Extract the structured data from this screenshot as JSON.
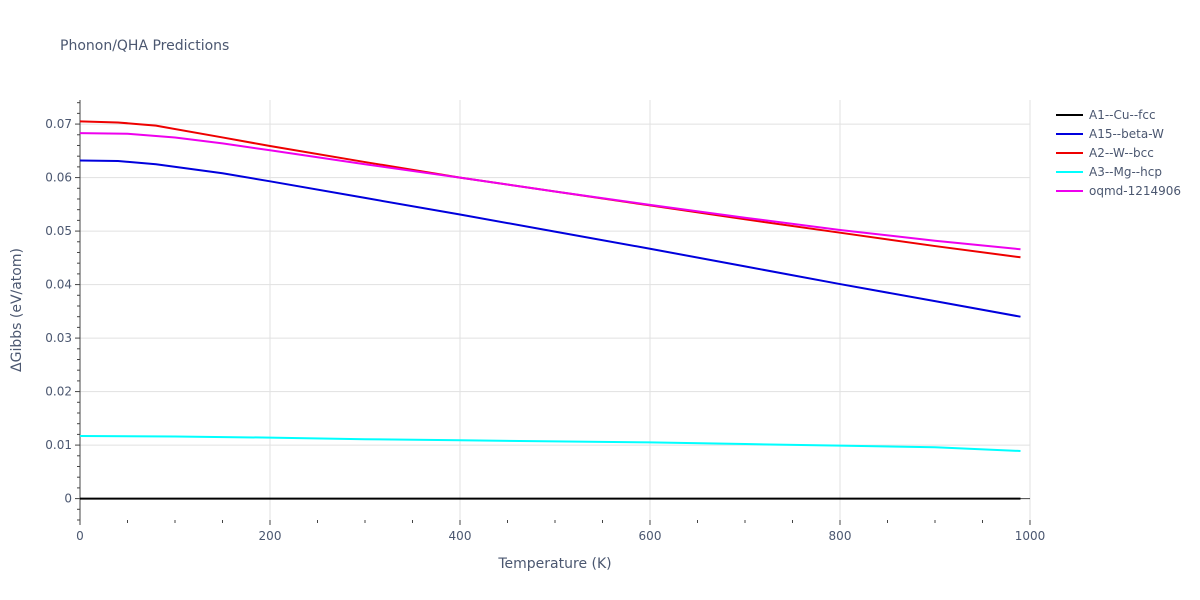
{
  "chart_data": {
    "type": "line",
    "title": "Phonon/QHA Predictions",
    "xlabel": "Temperature (K)",
    "ylabel": "ΔGibbs (eV/atom)",
    "xlim": [
      0,
      1000
    ],
    "ylim": [
      -0.004,
      0.0745
    ],
    "xticks": [
      0,
      200,
      400,
      600,
      800,
      1000
    ],
    "xtick_labels": [
      "0",
      "200",
      "400",
      "600",
      "800",
      "1000"
    ],
    "yticks": [
      0,
      0.01,
      0.02,
      0.03,
      0.04,
      0.05,
      0.06,
      0.07
    ],
    "ytick_labels": [
      "0",
      "0.01",
      "0.02",
      "0.03",
      "0.04",
      "0.05",
      "0.06",
      "0.07"
    ],
    "grid": true,
    "legend_position": "top-right",
    "series": [
      {
        "name": "A1--Cu--fcc",
        "color": "#000000",
        "x": [
          0,
          990
        ],
        "y": [
          0.0,
          0.0
        ]
      },
      {
        "name": "A15--beta-W",
        "color": "#0000dd",
        "x": [
          0,
          40,
          80,
          150,
          200,
          300,
          400,
          500,
          600,
          700,
          800,
          900,
          990
        ],
        "y": [
          0.0632,
          0.0631,
          0.0625,
          0.0608,
          0.0593,
          0.0562,
          0.0531,
          0.0499,
          0.0467,
          0.0434,
          0.0401,
          0.0369,
          0.034
        ]
      },
      {
        "name": "A2--W--bcc",
        "color": "#ee0000",
        "x": [
          0,
          40,
          80,
          150,
          200,
          300,
          400,
          500,
          600,
          700,
          800,
          900,
          990
        ],
        "y": [
          0.0705,
          0.0703,
          0.0697,
          0.0675,
          0.0659,
          0.0629,
          0.06,
          0.0574,
          0.0548,
          0.0522,
          0.0497,
          0.0472,
          0.0451
        ]
      },
      {
        "name": "A3--Mg--hcp",
        "color": "#00ffff",
        "x": [
          0,
          100,
          200,
          300,
          400,
          500,
          600,
          700,
          800,
          900,
          990
        ],
        "y": [
          0.0117,
          0.0116,
          0.0114,
          0.0111,
          0.0109,
          0.0107,
          0.0105,
          0.0102,
          0.0099,
          0.0096,
          0.0089
        ]
      },
      {
        "name": "oqmd-1214906",
        "color": "#ee00ee",
        "x": [
          0,
          50,
          100,
          150,
          200,
          300,
          400,
          500,
          600,
          700,
          800,
          900,
          990
        ],
        "y": [
          0.0683,
          0.0682,
          0.0675,
          0.0664,
          0.0651,
          0.0625,
          0.06,
          0.0574,
          0.0549,
          0.0525,
          0.0502,
          0.0482,
          0.0466
        ]
      }
    ]
  }
}
